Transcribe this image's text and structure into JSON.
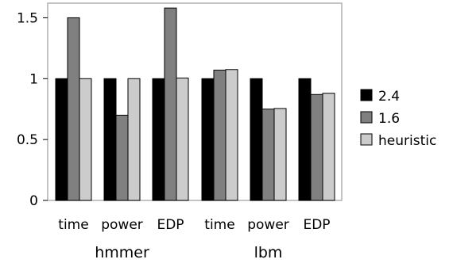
{
  "chart_data": {
    "type": "bar",
    "title": "",
    "xlabel": "",
    "ylabel": "",
    "ylim": [
      0,
      1.62
    ],
    "yticks": [
      0,
      0.5,
      1,
      1.5
    ],
    "ytick_labels": [
      "0",
      "0.5",
      "1",
      "1.5"
    ],
    "groups": [
      {
        "name": "hmmer",
        "categories": [
          "time",
          "power",
          "EDP"
        ]
      },
      {
        "name": "lbm",
        "categories": [
          "time",
          "power",
          "EDP"
        ]
      }
    ],
    "series": [
      {
        "name": "2.4",
        "color": "#000000",
        "values": [
          1.0,
          1.0,
          1.0,
          1.0,
          1.0,
          1.0
        ]
      },
      {
        "name": "1.6",
        "color": "#808080",
        "values": [
          1.5,
          0.7,
          1.58,
          1.07,
          0.75,
          0.87
        ]
      },
      {
        "name": "heuristic",
        "color": "#cccccc",
        "values": [
          1.0,
          1.0,
          1.005,
          1.075,
          0.755,
          0.88
        ]
      }
    ],
    "legend_position": "right",
    "grid": false
  }
}
